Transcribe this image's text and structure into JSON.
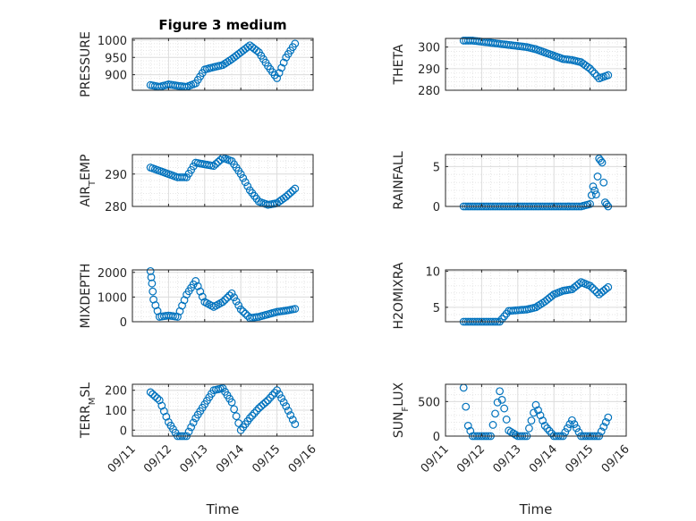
{
  "figure": {
    "title": "Figure 3 medium",
    "xlabel": "Time",
    "date_ticks": [
      "09/11",
      "09/12",
      "09/13",
      "09/14",
      "09/15",
      "09/16"
    ],
    "series_color": "#0072BD"
  },
  "chart_data": [
    {
      "type": "scatter",
      "title": "Figure 3 medium",
      "ylabel": "PRESSURE",
      "ylim": [
        855,
        1005
      ],
      "yticks": [
        900,
        950,
        1000
      ],
      "xlim": [
        "09/11",
        "09/16"
      ],
      "grid": true,
      "x": [
        "09/11 12:00",
        "09/11 18:00",
        "09/12 00:00",
        "09/12 06:00",
        "09/12 12:00",
        "09/12 18:00",
        "09/13 00:00",
        "09/13 06:00",
        "09/13 12:00",
        "09/13 18:00",
        "09/14 00:00",
        "09/14 06:00",
        "09/14 12:00",
        "09/14 18:00",
        "09/15 00:00",
        "09/15 06:00",
        "09/15 12:00"
      ],
      "y": [
        870,
        865,
        872,
        868,
        865,
        875,
        915,
        922,
        928,
        945,
        965,
        985,
        965,
        925,
        890,
        950,
        990
      ]
    },
    {
      "type": "scatter",
      "ylabel": "THETA",
      "ylim": [
        280,
        304
      ],
      "yticks": [
        280,
        290,
        300
      ],
      "xlim": [
        "09/11",
        "09/16"
      ],
      "grid": true,
      "x": [
        "09/11 12:00",
        "09/11 18:00",
        "09/12 00:00",
        "09/12 06:00",
        "09/12 12:00",
        "09/12 18:00",
        "09/13 00:00",
        "09/13 06:00",
        "09/13 12:00",
        "09/13 18:00",
        "09/14 00:00",
        "09/14 06:00",
        "09/14 12:00",
        "09/14 18:00",
        "09/15 00:00",
        "09/15 06:00",
        "09/15 12:00"
      ],
      "y": [
        303,
        303,
        302.5,
        302,
        301.5,
        301,
        300.5,
        300,
        299,
        297.5,
        296,
        294.5,
        294,
        293,
        290,
        285.5,
        287
      ]
    },
    {
      "type": "scatter",
      "ylabel": "AIR_TEMP",
      "ylim": [
        280,
        296
      ],
      "yticks": [
        280,
        290
      ],
      "xlim": [
        "09/11",
        "09/16"
      ],
      "grid": true,
      "x": [
        "09/11 12:00",
        "09/11 18:00",
        "09/12 00:00",
        "09/12 06:00",
        "09/12 12:00",
        "09/12 18:00",
        "09/13 00:00",
        "09/13 06:00",
        "09/13 12:00",
        "09/13 18:00",
        "09/14 00:00",
        "09/14 06:00",
        "09/14 12:00",
        "09/14 18:00",
        "09/15 00:00",
        "09/15 06:00",
        "09/15 12:00"
      ],
      "y": [
        292,
        291,
        290,
        289,
        289,
        293.5,
        293,
        292.5,
        295,
        294,
        290,
        285,
        281.5,
        280.5,
        281,
        283,
        285.5
      ]
    },
    {
      "type": "scatter",
      "ylabel": "RAINFALL",
      "ylim": [
        0,
        6.5
      ],
      "yticks": [
        0,
        5
      ],
      "xlim": [
        "09/11",
        "09/16"
      ],
      "grid": true,
      "x": [
        "09/11 12:00",
        "09/11 18:00",
        "09/12 00:00",
        "09/12 12:00",
        "09/13 00:00",
        "09/13 12:00",
        "09/14 00:00",
        "09/14 12:00",
        "09/14 18:00",
        "09/15 00:00",
        "09/15 02:00",
        "09/15 04:00",
        "09/15 06:00",
        "09/15 08:00",
        "09/15 10:00",
        "09/15 12:00"
      ],
      "y": [
        0,
        0,
        0,
        0,
        0,
        0,
        0,
        0,
        0,
        0.3,
        2.5,
        1.5,
        6,
        5.5,
        0.5,
        0
      ]
    },
    {
      "type": "scatter",
      "ylabel": "MIXDEPTH",
      "ylim": [
        0,
        2100
      ],
      "yticks": [
        0,
        1000,
        2000
      ],
      "xlim": [
        "09/11",
        "09/16"
      ],
      "grid": true,
      "x": [
        "09/11 12:00",
        "09/11 13:00",
        "09/11 14:00",
        "09/11 18:00",
        "09/12 00:00",
        "09/12 06:00",
        "09/12 12:00",
        "09/12 18:00",
        "09/13 00:00",
        "09/13 06:00",
        "09/13 12:00",
        "09/13 18:00",
        "09/14 00:00",
        "09/14 06:00",
        "09/14 12:00",
        "09/14 18:00",
        "09/15 00:00",
        "09/15 06:00",
        "09/15 12:00"
      ],
      "y": [
        2050,
        1550,
        900,
        200,
        250,
        200,
        1100,
        1650,
        800,
        600,
        800,
        1150,
        500,
        150,
        200,
        300,
        400,
        450,
        520
      ]
    },
    {
      "type": "scatter",
      "ylabel": "H2OMIXRA",
      "ylim": [
        3,
        10.2
      ],
      "yticks": [
        5,
        10
      ],
      "xlim": [
        "09/11",
        "09/16"
      ],
      "grid": true,
      "x": [
        "09/11 12:00",
        "09/11 18:00",
        "09/12 00:00",
        "09/12 06:00",
        "09/12 12:00",
        "09/12 18:00",
        "09/13 00:00",
        "09/13 06:00",
        "09/13 12:00",
        "09/13 18:00",
        "09/14 00:00",
        "09/14 06:00",
        "09/14 12:00",
        "09/14 18:00",
        "09/15 00:00",
        "09/15 06:00",
        "09/15 12:00"
      ],
      "y": [
        3,
        3,
        3,
        3,
        3,
        4.5,
        4.6,
        4.7,
        5,
        5.8,
        6.8,
        7.3,
        7.5,
        8.5,
        8,
        6.8,
        7.8
      ]
    },
    {
      "type": "scatter",
      "ylabel": "TERR_MSL",
      "xlabel": "Time",
      "ylim": [
        -30,
        230
      ],
      "yticks": [
        0,
        100,
        200
      ],
      "xlim": [
        "09/11",
        "09/16"
      ],
      "grid": true,
      "x": [
        "09/11 12:00",
        "09/11 18:00",
        "09/12 00:00",
        "09/12 06:00",
        "09/12 12:00",
        "09/12 18:00",
        "09/13 00:00",
        "09/13 06:00",
        "09/13 12:00",
        "09/13 18:00",
        "09/14 00:00",
        "09/14 06:00",
        "09/14 12:00",
        "09/14 18:00",
        "09/15 00:00",
        "09/15 06:00",
        "09/15 12:00"
      ],
      "y": [
        190,
        150,
        40,
        -30,
        -30,
        60,
        130,
        200,
        210,
        140,
        0,
        60,
        110,
        150,
        200,
        120,
        30
      ]
    },
    {
      "type": "scatter",
      "ylabel": "SUN_FLUX",
      "xlabel": "Time",
      "ylim": [
        0,
        750
      ],
      "yticks": [
        0,
        500
      ],
      "xlim": [
        "09/11",
        "09/16"
      ],
      "grid": true,
      "x": [
        "09/11 12:00",
        "09/11 15:00",
        "09/11 18:00",
        "09/12 00:00",
        "09/12 06:00",
        "09/12 12:00",
        "09/12 15:00",
        "09/12 18:00",
        "09/13 00:00",
        "09/13 06:00",
        "09/13 12:00",
        "09/13 18:00",
        "09/14 00:00",
        "09/14 06:00",
        "09/14 12:00",
        "09/14 18:00",
        "09/15 00:00",
        "09/15 06:00",
        "09/15 12:00"
      ],
      "y": [
        700,
        150,
        0,
        0,
        0,
        650,
        400,
        80,
        0,
        0,
        450,
        150,
        0,
        0,
        230,
        0,
        0,
        0,
        270
      ]
    }
  ]
}
